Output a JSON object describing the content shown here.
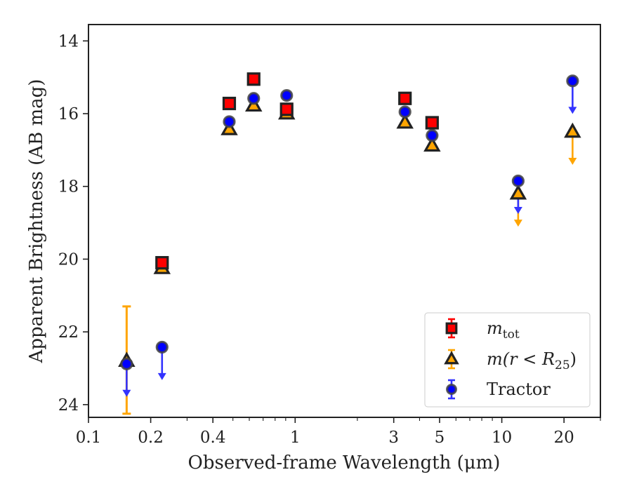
{
  "chart_data": {
    "type": "scatter",
    "xlabel": "Observed-frame Wavelength (μm)",
    "ylabel": "Apparent Brightness (AB mag)",
    "x_scale": "log",
    "xlim": [
      0.1,
      30
    ],
    "ylim": [
      24.35,
      13.55
    ],
    "y_inverted": true,
    "x_ticks": [
      {
        "value": 0.1,
        "label": "0.1"
      },
      {
        "value": 0.2,
        "label": "0.2"
      },
      {
        "value": 0.4,
        "label": "0.4"
      },
      {
        "value": 1,
        "label": "1"
      },
      {
        "value": 3,
        "label": "3"
      },
      {
        "value": 5,
        "label": "5"
      },
      {
        "value": 10,
        "label": "10"
      },
      {
        "value": 20,
        "label": "20"
      }
    ],
    "y_ticks": [
      {
        "value": 14,
        "label": "14"
      },
      {
        "value": 16,
        "label": "16"
      },
      {
        "value": 18,
        "label": "18"
      },
      {
        "value": 20,
        "label": "20"
      },
      {
        "value": 22,
        "label": "22"
      },
      {
        "value": 24,
        "label": "24"
      }
    ],
    "legend_position": "lower-right",
    "series": [
      {
        "name": "m_tot",
        "legend_main": "m",
        "legend_sub": "tot",
        "marker": "square",
        "color": "#ff0000",
        "errcolor": "#ff0000",
        "points": [
          {
            "x": 0.227,
            "y": 20.1
          },
          {
            "x": 0.48,
            "y": 15.72
          },
          {
            "x": 0.63,
            "y": 15.05
          },
          {
            "x": 0.91,
            "y": 15.88
          },
          {
            "x": 3.4,
            "y": 15.58
          },
          {
            "x": 4.6,
            "y": 16.25
          }
        ]
      },
      {
        "name": "m(r < R_25)",
        "legend_main": "m(r < R",
        "legend_sub": "25",
        "legend_tail": ")",
        "marker": "triangle",
        "color": "#ffa500",
        "errcolor": "#ffa500",
        "points": [
          {
            "x": 0.153,
            "y": 22.8,
            "err": [
              21.3,
              24.25
            ]
          },
          {
            "x": 0.227,
            "y": 20.25
          },
          {
            "x": 0.48,
            "y": 16.43
          },
          {
            "x": 0.63,
            "y": 15.78
          },
          {
            "x": 0.91,
            "y": 16.0
          },
          {
            "x": 3.4,
            "y": 16.25
          },
          {
            "x": 4.6,
            "y": 16.88
          },
          {
            "x": 12.0,
            "y": 18.2,
            "upper_limit": true
          },
          {
            "x": 22.0,
            "y": 16.5,
            "upper_limit": true
          }
        ]
      },
      {
        "name": "Tractor",
        "legend_main": "Tractor",
        "marker": "circle",
        "color": "#0000ff",
        "errcolor": "#3333ff",
        "points": [
          {
            "x": 0.153,
            "y": 22.88,
            "upper_limit": true
          },
          {
            "x": 0.227,
            "y": 22.42,
            "upper_limit": true
          },
          {
            "x": 0.48,
            "y": 16.22
          },
          {
            "x": 0.63,
            "y": 15.58
          },
          {
            "x": 0.91,
            "y": 15.5
          },
          {
            "x": 3.4,
            "y": 15.95
          },
          {
            "x": 4.6,
            "y": 16.6
          },
          {
            "x": 12.0,
            "y": 17.85,
            "upper_limit": true
          },
          {
            "x": 22.0,
            "y": 15.1,
            "upper_limit": true
          }
        ]
      }
    ]
  }
}
